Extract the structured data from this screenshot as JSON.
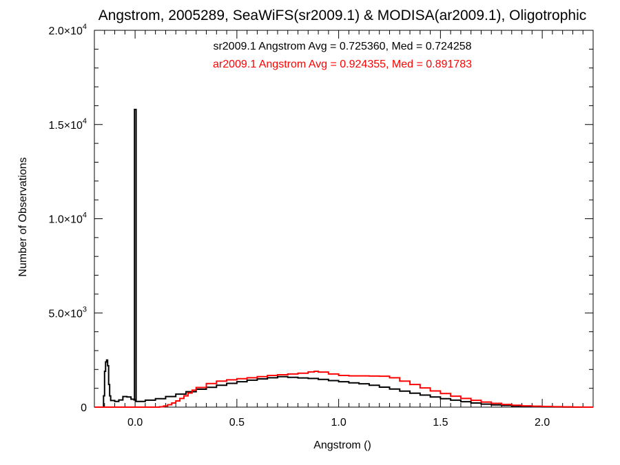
{
  "chart_data": {
    "type": "line",
    "title": "Angstrom, 2005289, SeaWiFS(sr2009.1) & MODISA(ar2009.1), Oligotrophic",
    "xlabel": "Angstrom ()",
    "ylabel": "Number of Observations",
    "xlim": [
      -0.2,
      2.25
    ],
    "ylim": [
      0,
      20000
    ],
    "x_ticks": [
      {
        "value": 0.0,
        "label": "0.0"
      },
      {
        "value": 0.5,
        "label": "0.5"
      },
      {
        "value": 1.0,
        "label": "1.0"
      },
      {
        "value": 1.5,
        "label": "1.5"
      },
      {
        "value": 2.0,
        "label": "2.0"
      }
    ],
    "y_ticks": [
      {
        "value": 0,
        "base": "0",
        "exp": ""
      },
      {
        "value": 5000,
        "base": "5.0×10",
        "exp": "3"
      },
      {
        "value": 10000,
        "base": "1.0×10",
        "exp": "4"
      },
      {
        "value": 15000,
        "base": "1.5×10",
        "exp": "4"
      },
      {
        "value": 20000,
        "base": "2.0×10",
        "exp": "4"
      }
    ],
    "annotations": [
      {
        "text": "sr2009.1 Angstrom Avg = 0.725360, Med = 0.724258",
        "color": "#000000"
      },
      {
        "text": "ar2009.1 Angstrom Avg = 0.924355, Med = 0.891783",
        "color": "#ff0000"
      }
    ],
    "grid": false,
    "series": [
      {
        "color": "#000000",
        "step": true,
        "points": [
          [
            -0.2,
            0
          ],
          [
            -0.16,
            0
          ],
          [
            -0.155,
            600
          ],
          [
            -0.15,
            1900
          ],
          [
            -0.145,
            2400
          ],
          [
            -0.14,
            2500
          ],
          [
            -0.135,
            2200
          ],
          [
            -0.13,
            1200
          ],
          [
            -0.125,
            600
          ],
          [
            -0.12,
            350
          ],
          [
            -0.1,
            300
          ],
          [
            -0.08,
            380
          ],
          [
            -0.06,
            560
          ],
          [
            -0.04,
            540
          ],
          [
            -0.02,
            420
          ],
          [
            -0.005,
            380
          ],
          [
            -0.003,
            15800
          ],
          [
            0.003,
            15800
          ],
          [
            0.005,
            300
          ],
          [
            0.05,
            370
          ],
          [
            0.1,
            450
          ],
          [
            0.15,
            560
          ],
          [
            0.2,
            690
          ],
          [
            0.25,
            820
          ],
          [
            0.3,
            950
          ],
          [
            0.35,
            1050
          ],
          [
            0.4,
            1160
          ],
          [
            0.45,
            1260
          ],
          [
            0.5,
            1350
          ],
          [
            0.55,
            1430
          ],
          [
            0.6,
            1500
          ],
          [
            0.65,
            1560
          ],
          [
            0.7,
            1620
          ],
          [
            0.75,
            1580
          ],
          [
            0.8,
            1550
          ],
          [
            0.85,
            1520
          ],
          [
            0.9,
            1470
          ],
          [
            0.95,
            1410
          ],
          [
            1.0,
            1350
          ],
          [
            1.05,
            1290
          ],
          [
            1.1,
            1240
          ],
          [
            1.15,
            1160
          ],
          [
            1.2,
            1060
          ],
          [
            1.25,
            960
          ],
          [
            1.3,
            850
          ],
          [
            1.35,
            740
          ],
          [
            1.4,
            640
          ],
          [
            1.45,
            540
          ],
          [
            1.5,
            450
          ],
          [
            1.55,
            370
          ],
          [
            1.6,
            290
          ],
          [
            1.65,
            220
          ],
          [
            1.7,
            160
          ],
          [
            1.75,
            120
          ],
          [
            1.8,
            90
          ],
          [
            1.85,
            60
          ],
          [
            1.9,
            40
          ],
          [
            1.95,
            25
          ],
          [
            2.0,
            15
          ],
          [
            2.05,
            8
          ],
          [
            2.1,
            4
          ],
          [
            2.15,
            0
          ],
          [
            2.25,
            0
          ]
        ]
      },
      {
        "color": "#ff0000",
        "step": true,
        "points": [
          [
            -0.2,
            0
          ],
          [
            0.1,
            0
          ],
          [
            0.12,
            20
          ],
          [
            0.14,
            60
          ],
          [
            0.16,
            130
          ],
          [
            0.18,
            220
          ],
          [
            0.2,
            330
          ],
          [
            0.22,
            460
          ],
          [
            0.24,
            600
          ],
          [
            0.26,
            750
          ],
          [
            0.28,
            900
          ],
          [
            0.3,
            1040
          ],
          [
            0.35,
            1250
          ],
          [
            0.4,
            1380
          ],
          [
            0.45,
            1450
          ],
          [
            0.5,
            1510
          ],
          [
            0.55,
            1560
          ],
          [
            0.6,
            1620
          ],
          [
            0.65,
            1680
          ],
          [
            0.7,
            1720
          ],
          [
            0.75,
            1760
          ],
          [
            0.8,
            1800
          ],
          [
            0.85,
            1870
          ],
          [
            0.88,
            1900
          ],
          [
            0.9,
            1860
          ],
          [
            0.95,
            1760
          ],
          [
            1.0,
            1680
          ],
          [
            1.05,
            1660
          ],
          [
            1.1,
            1660
          ],
          [
            1.15,
            1650
          ],
          [
            1.2,
            1640
          ],
          [
            1.25,
            1560
          ],
          [
            1.3,
            1380
          ],
          [
            1.35,
            1200
          ],
          [
            1.4,
            1020
          ],
          [
            1.45,
            860
          ],
          [
            1.5,
            720
          ],
          [
            1.55,
            580
          ],
          [
            1.6,
            460
          ],
          [
            1.65,
            360
          ],
          [
            1.7,
            270
          ],
          [
            1.75,
            200
          ],
          [
            1.8,
            140
          ],
          [
            1.85,
            100
          ],
          [
            1.9,
            70
          ],
          [
            1.95,
            50
          ],
          [
            2.0,
            35
          ],
          [
            2.05,
            22
          ],
          [
            2.1,
            12
          ],
          [
            2.15,
            5
          ],
          [
            2.2,
            0
          ],
          [
            2.25,
            0
          ]
        ]
      }
    ]
  }
}
